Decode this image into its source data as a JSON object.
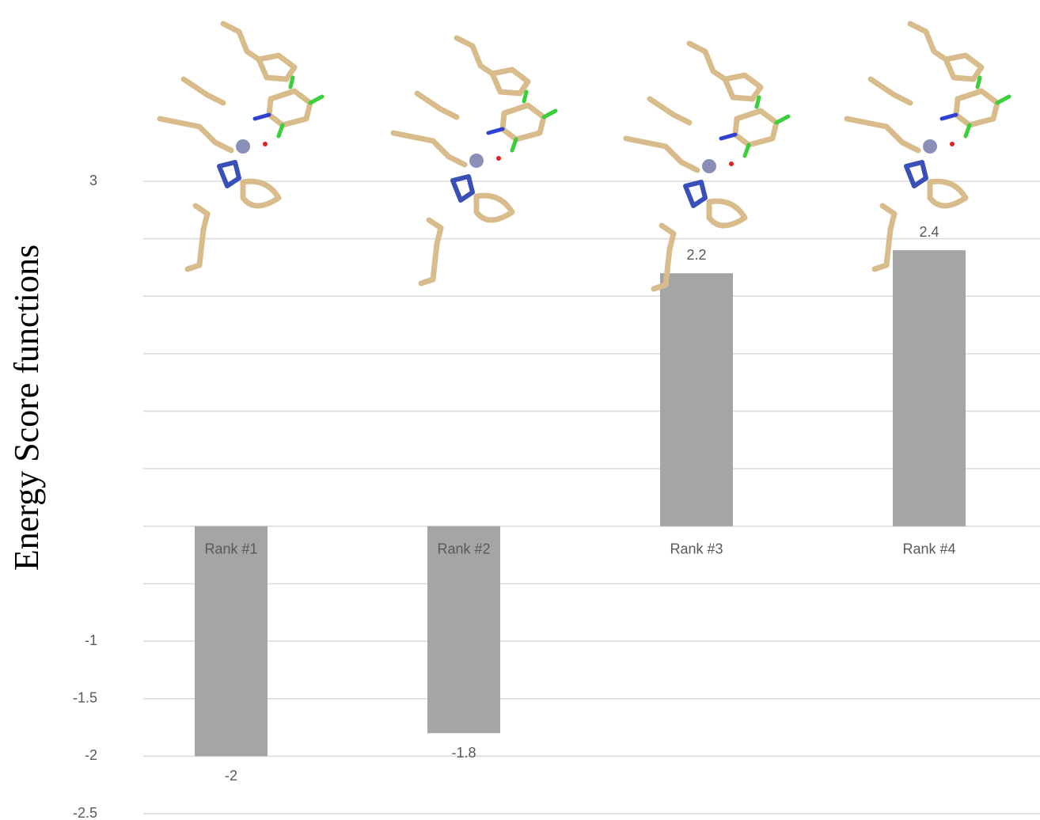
{
  "chart_data": {
    "type": "bar",
    "y_label": "Energy Score functions",
    "categories": [
      "Rank #1",
      "Rank #2",
      "Rank #3",
      "Rank #4"
    ],
    "values": [
      -2,
      -1.8,
      2.2,
      2.4
    ],
    "color": "#a5a5a5",
    "ylim": [
      -2.5,
      3
    ],
    "yticks": [
      3,
      {
        "value": 2.5,
        "label": null
      },
      {
        "value": 2,
        "label": null
      },
      {
        "value": 1.5,
        "label": null
      },
      {
        "value": 1,
        "label": null
      },
      {
        "value": 0.5,
        "label": null
      },
      {
        "value": 0,
        "label": null
      },
      {
        "value": -0.5,
        "label": null
      },
      -1,
      -1.5,
      -2,
      -2.5
    ],
    "grid": true
  }
}
